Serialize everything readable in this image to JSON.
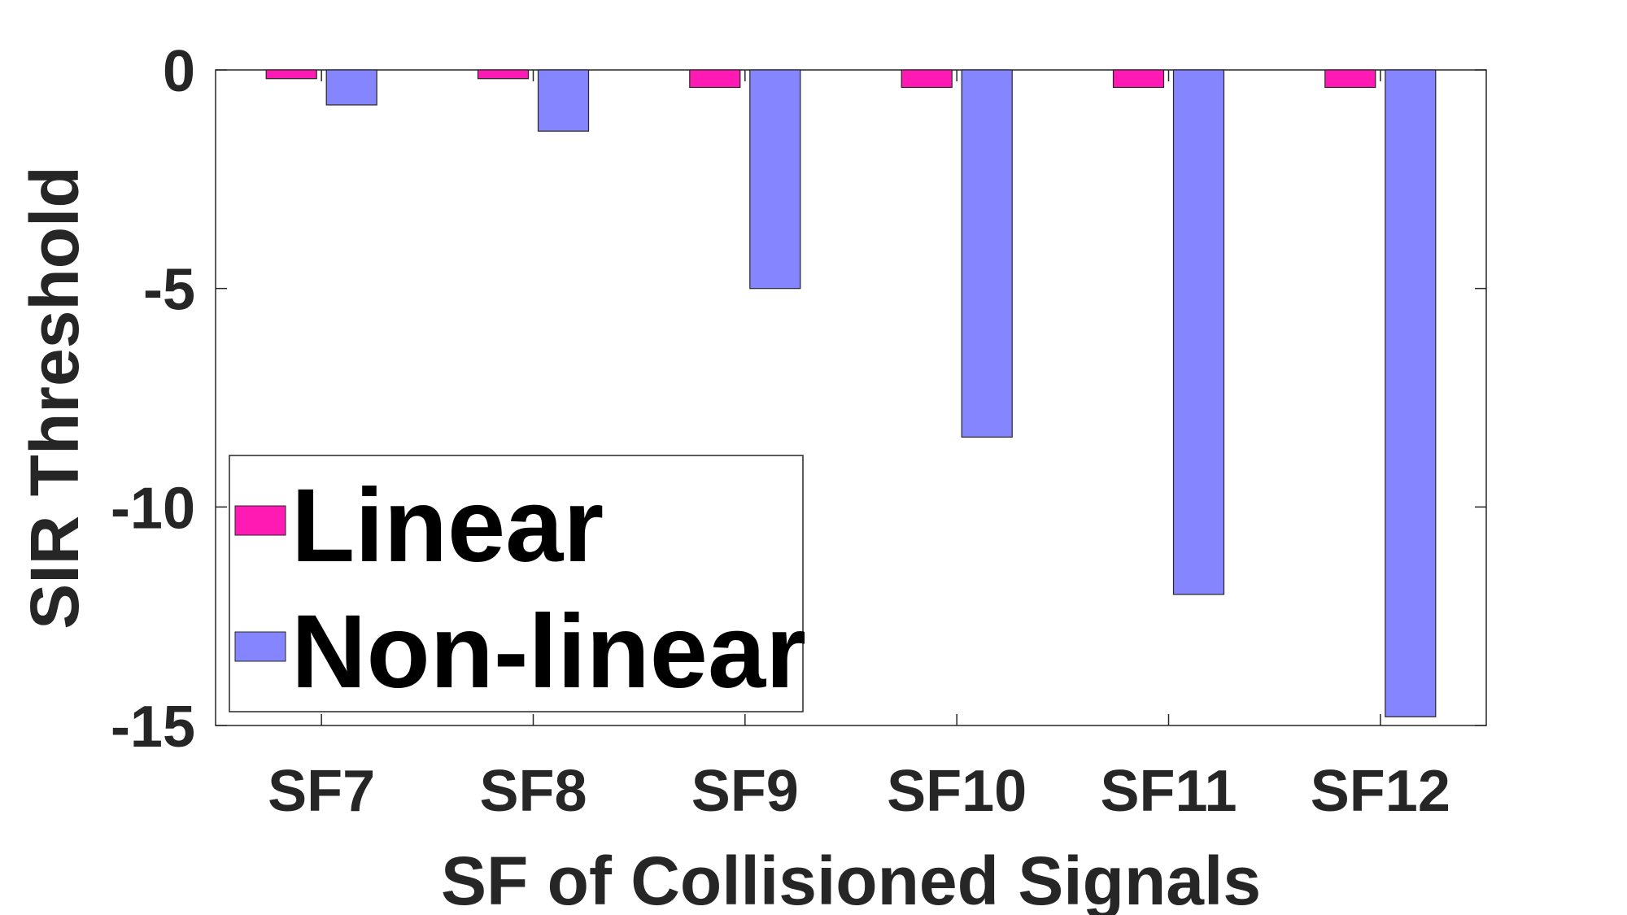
{
  "chart_data": {
    "type": "bar",
    "title": "",
    "xlabel": "SF of Collisioned Signals",
    "ylabel": "SIR Threshold",
    "categories": [
      "SF7",
      "SF8",
      "SF9",
      "SF10",
      "SF11",
      "SF12"
    ],
    "series": [
      {
        "name": "Linear",
        "color": "#ff1ab3",
        "values": [
          -0.2,
          -0.2,
          -0.4,
          -0.4,
          -0.4,
          -0.4
        ]
      },
      {
        "name": "Non-linear",
        "color": "#8585ff",
        "values": [
          -0.8,
          -1.4,
          -5.0,
          -8.4,
          -12.0,
          -14.8
        ]
      }
    ],
    "ylim": [
      -15,
      0
    ],
    "yticks": [
      "0",
      "-5",
      "-10",
      "-15"
    ],
    "ytick_values": [
      0,
      -5,
      -10,
      -15
    ],
    "legend_position": "bottom-left",
    "grid": false
  }
}
